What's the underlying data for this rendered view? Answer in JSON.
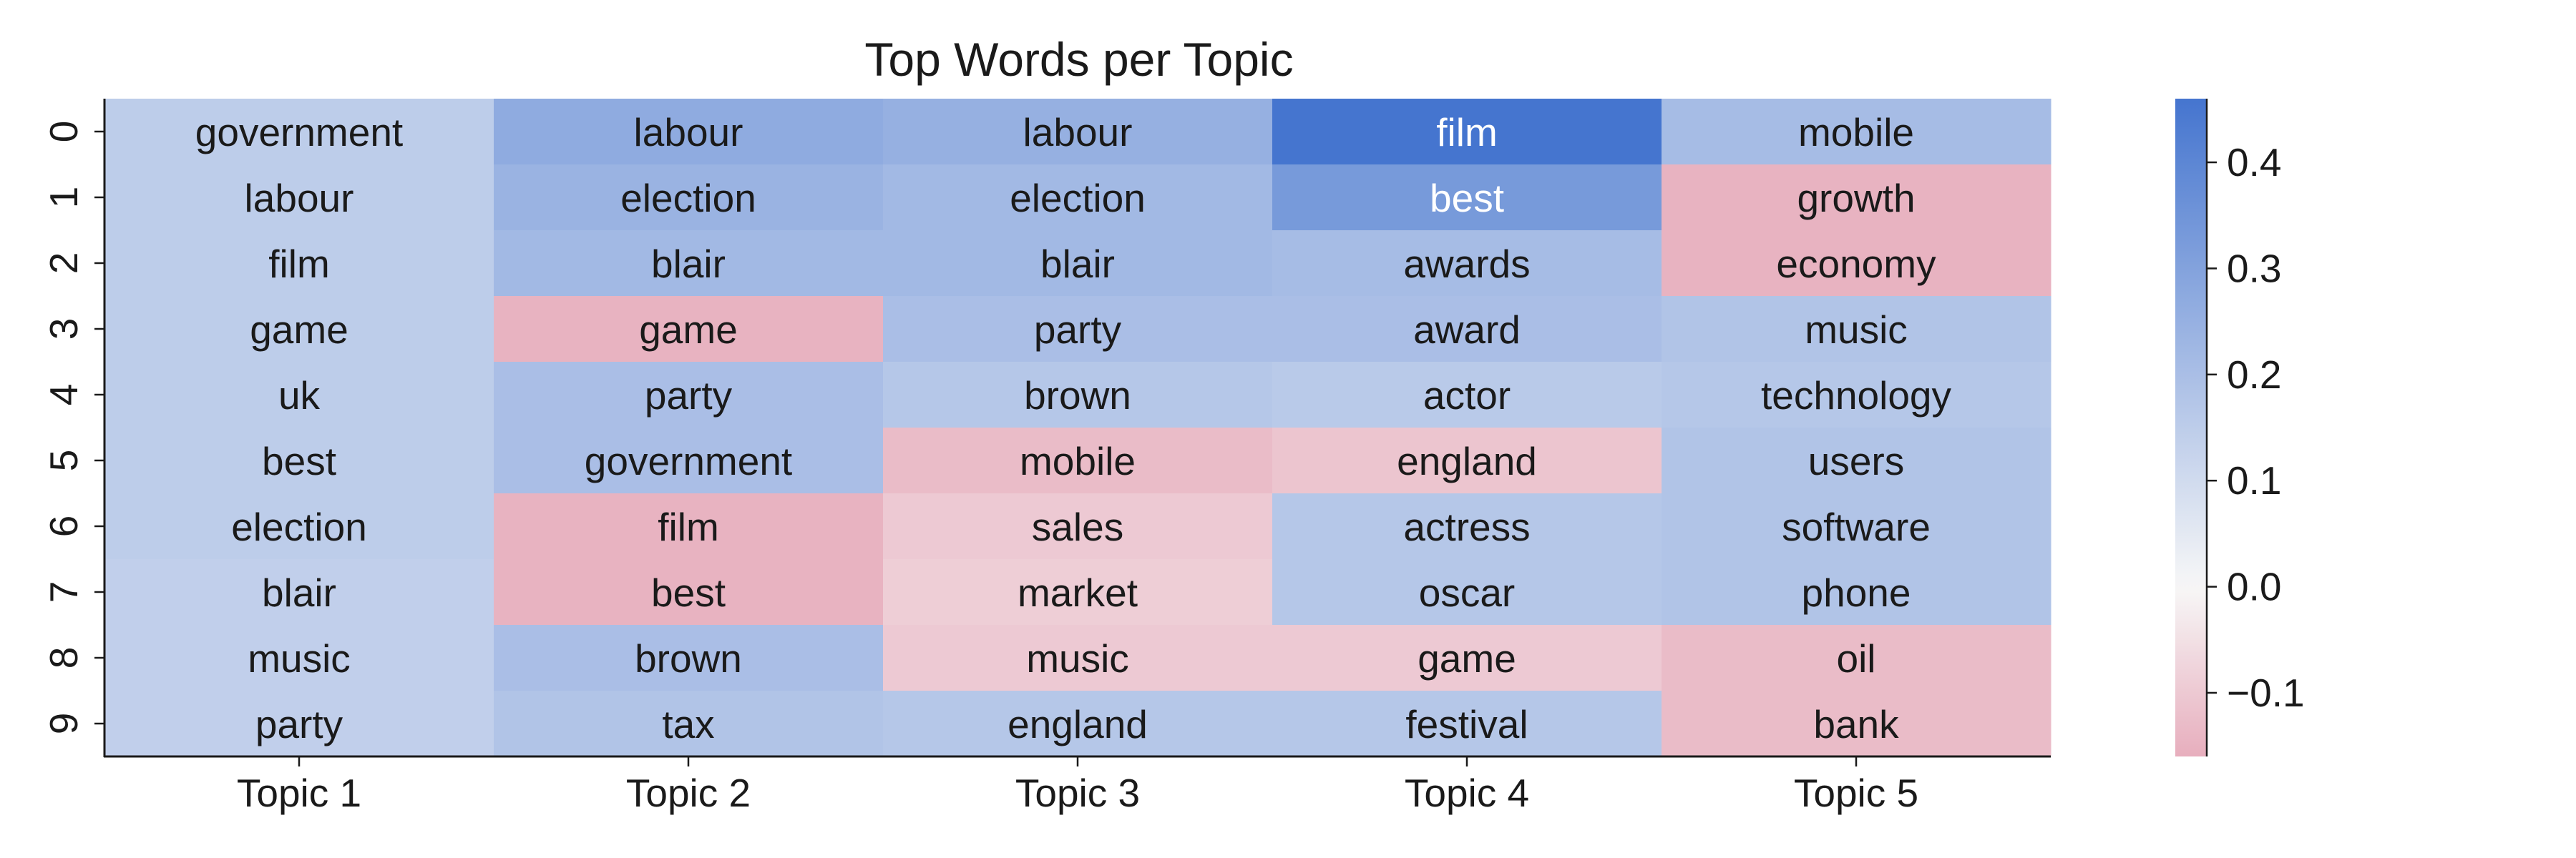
{
  "chart_data": {
    "type": "heatmap",
    "title": "Top Words per Topic",
    "xlabel": "",
    "ylabel": "",
    "columns": [
      "Topic 1",
      "Topic 2",
      "Topic 3",
      "Topic 4",
      "Topic 5"
    ],
    "rows": [
      "0",
      "1",
      "2",
      "3",
      "4",
      "5",
      "6",
      "7",
      "8",
      "9"
    ],
    "words": [
      [
        "government",
        "labour",
        "labour",
        "film",
        "mobile"
      ],
      [
        "labour",
        "election",
        "election",
        "best",
        "growth"
      ],
      [
        "film",
        "blair",
        "blair",
        "awards",
        "economy"
      ],
      [
        "game",
        "game",
        "party",
        "award",
        "music"
      ],
      [
        "uk",
        "party",
        "brown",
        "actor",
        "technology"
      ],
      [
        "best",
        "government",
        "mobile",
        "england",
        "users"
      ],
      [
        "election",
        "film",
        "sales",
        "actress",
        "software"
      ],
      [
        "blair",
        "best",
        "market",
        "oscar",
        "phone"
      ],
      [
        "music",
        "brown",
        "music",
        "game",
        "oil"
      ],
      [
        "party",
        "tax",
        "england",
        "festival",
        "bank"
      ]
    ],
    "values": [
      [
        0.15,
        0.27,
        0.25,
        0.46,
        0.21
      ],
      [
        0.15,
        0.24,
        0.22,
        0.33,
        -0.15
      ],
      [
        0.15,
        0.22,
        0.22,
        0.21,
        -0.15
      ],
      [
        0.15,
        -0.15,
        0.2,
        0.2,
        0.18
      ],
      [
        0.15,
        0.2,
        0.17,
        0.16,
        0.17
      ],
      [
        0.15,
        0.2,
        -0.13,
        -0.11,
        0.18
      ],
      [
        0.15,
        -0.15,
        -0.1,
        0.17,
        0.18
      ],
      [
        0.14,
        -0.15,
        -0.09,
        0.17,
        0.18
      ],
      [
        0.14,
        0.2,
        -0.1,
        -0.1,
        -0.13
      ],
      [
        0.14,
        0.18,
        0.17,
        0.17,
        -0.13
      ]
    ],
    "colorbar": {
      "range": [
        -0.16,
        0.46
      ],
      "ticks": [
        0.4,
        0.3,
        0.2,
        0.1,
        0.0,
        -0.1
      ],
      "tick_labels": [
        "0.4",
        "0.3",
        "0.2",
        "0.1",
        "0.0",
        "−0.1"
      ],
      "colormap": "diverging pink-white-blue",
      "colors": {
        "negative": "#e7aebd",
        "zero": "#f7f7f7",
        "positive": "#4575cf"
      }
    },
    "grid": false
  }
}
